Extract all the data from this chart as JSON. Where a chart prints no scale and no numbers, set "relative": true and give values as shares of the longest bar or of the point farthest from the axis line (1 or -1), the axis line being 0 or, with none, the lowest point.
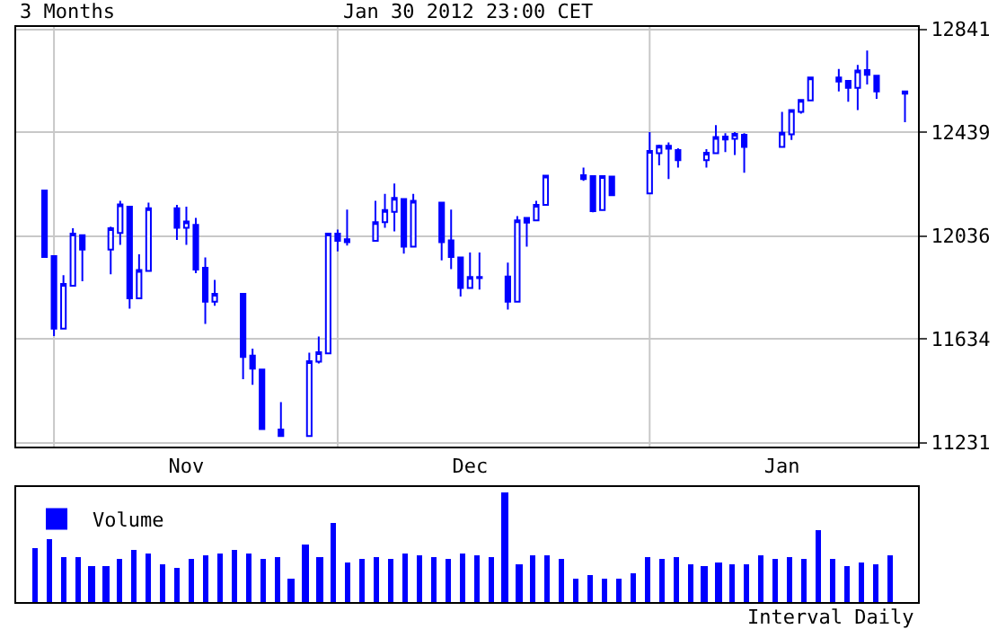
{
  "chart_data": [
    {
      "type": "candlestick",
      "title": "3 Months",
      "subtitle": "Jan 30 2012 23:00 CET",
      "color": "#0000ff",
      "grid": true,
      "x": [
        "2011-10-31",
        "2011-11-01",
        "2011-11-02",
        "2011-11-03",
        "2011-11-04",
        "2011-11-07",
        "2011-11-08",
        "2011-11-09",
        "2011-11-10",
        "2011-11-11",
        "2011-11-14",
        "2011-11-15",
        "2011-11-16",
        "2011-11-17",
        "2011-11-18",
        "2011-11-21",
        "2011-11-22",
        "2011-11-23",
        "2011-11-25",
        "2011-11-28",
        "2011-11-29",
        "2011-11-30",
        "2011-12-01",
        "2011-12-02",
        "2011-12-05",
        "2011-12-06",
        "2011-12-07",
        "2011-12-08",
        "2011-12-09",
        "2011-12-12",
        "2011-12-13",
        "2011-12-14",
        "2011-12-15",
        "2011-12-16",
        "2011-12-19",
        "2011-12-20",
        "2011-12-21",
        "2011-12-22",
        "2011-12-23",
        "2011-12-27",
        "2011-12-28",
        "2011-12-29",
        "2011-12-30",
        "2012-01-03",
        "2012-01-04",
        "2012-01-05",
        "2012-01-06",
        "2012-01-09",
        "2012-01-10",
        "2012-01-11",
        "2012-01-12",
        "2012-01-13",
        "2012-01-17",
        "2012-01-18",
        "2012-01-19",
        "2012-01-20",
        "2012-01-23",
        "2012-01-24",
        "2012-01-25",
        "2012-01-26",
        "2012-01-27",
        "2012-01-30"
      ],
      "ohlc": [
        [
          12213,
          12213,
          11954,
          11954
        ],
        [
          11958,
          11958,
          11646,
          11675
        ],
        [
          11675,
          11883,
          11675,
          11849
        ],
        [
          11842,
          12066,
          11842,
          12045
        ],
        [
          12039,
          12039,
          11860,
          11983
        ],
        [
          11983,
          12072,
          11887,
          12066
        ],
        [
          12048,
          12173,
          12001,
          12159
        ],
        [
          12150,
          12150,
          11753,
          11793
        ],
        [
          11793,
          11965,
          11793,
          11903
        ],
        [
          11900,
          12166,
          11900,
          12144
        ],
        [
          12144,
          12157,
          12021,
          12068
        ],
        [
          12068,
          12150,
          12001,
          12092
        ],
        [
          12079,
          12106,
          11891,
          11905
        ],
        [
          11912,
          11952,
          11693,
          11780
        ],
        [
          11780,
          11865,
          11764,
          11811
        ],
        [
          11811,
          11811,
          11478,
          11565
        ],
        [
          11570,
          11597,
          11456,
          11519
        ],
        [
          11516,
          11516,
          11284,
          11284
        ],
        [
          11282,
          11389,
          11257,
          11257
        ],
        [
          11257,
          11581,
          11257,
          11548
        ],
        [
          11546,
          11644,
          11539,
          11583
        ],
        [
          11579,
          12045,
          11579,
          12045
        ],
        [
          12045,
          12061,
          11976,
          12017
        ],
        [
          12023,
          12139,
          11999,
          12012
        ],
        [
          12017,
          12173,
          12017,
          12090
        ],
        [
          12090,
          12200,
          12068,
          12137
        ],
        [
          12130,
          12240,
          12054,
          12184
        ],
        [
          12180,
          12180,
          11967,
          11994
        ],
        [
          11994,
          12200,
          11994,
          12173
        ],
        [
          12166,
          12166,
          11941,
          12012
        ],
        [
          12019,
          12139,
          11907,
          11954
        ],
        [
          11952,
          11952,
          11800,
          11833
        ],
        [
          11833,
          11972,
          11833,
          11876
        ],
        [
          11876,
          11972,
          11827,
          11872
        ],
        [
          11878,
          11932,
          11749,
          11780
        ],
        [
          11780,
          12113,
          11780,
          12097
        ],
        [
          12106,
          12106,
          11994,
          12088
        ],
        [
          12097,
          12173,
          12097,
          12157
        ],
        [
          12157,
          12271,
          12157,
          12271
        ],
        [
          12273,
          12302,
          12251,
          12258
        ],
        [
          12269,
          12271,
          12128,
          12133
        ],
        [
          12137,
          12271,
          12137,
          12269
        ],
        [
          12267,
          12267,
          12195,
          12195
        ],
        [
          12202,
          12441,
          12202,
          12367
        ],
        [
          12358,
          12392,
          12311,
          12387
        ],
        [
          12387,
          12400,
          12258,
          12376
        ],
        [
          12371,
          12378,
          12302,
          12331
        ],
        [
          12331,
          12374,
          12302,
          12360
        ],
        [
          12358,
          12468,
          12358,
          12421
        ],
        [
          12423,
          12436,
          12363,
          12412
        ],
        [
          12414,
          12441,
          12351,
          12434
        ],
        [
          12430,
          12436,
          12282,
          12383
        ],
        [
          12383,
          12519,
          12383,
          12438
        ],
        [
          12432,
          12526,
          12410,
          12526
        ],
        [
          12519,
          12566,
          12512,
          12566
        ],
        [
          12564,
          12653,
          12564,
          12653
        ],
        [
          12653,
          12686,
          12599,
          12637
        ],
        [
          12640,
          12640,
          12559,
          12613
        ],
        [
          12613,
          12702,
          12526,
          12680
        ],
        [
          12682,
          12758,
          12626,
          12664
        ],
        [
          12660,
          12660,
          12570,
          12599
        ],
        [
          12599,
          12599,
          12479,
          12590
        ]
      ],
      "xlim": [
        "2011-10-28",
        "2012-01-31T09:00"
      ],
      "xticks": [
        {
          "value": "2011-11-01",
          "label": null
        },
        {
          "value": "2011-12-01",
          "label": null
        },
        {
          "value": "2012-01-03",
          "label": null
        },
        {
          "value": "2011-11-15",
          "label": "Nov"
        },
        {
          "value": "2011-12-15",
          "label": "Dec"
        },
        {
          "value": "2012-01-17",
          "label": "Jan"
        }
      ],
      "ylim": [
        11215,
        12850
      ],
      "yticks": [
        11231,
        11634,
        12036,
        12439,
        12841
      ]
    },
    {
      "type": "bar",
      "relative": true,
      "legend": "top left",
      "annotations": [
        "Interval Daily"
      ],
      "categories": [
        null,
        null,
        null,
        null,
        null,
        null,
        null,
        null,
        null,
        null,
        null,
        null,
        null,
        null,
        null,
        null,
        null,
        null,
        null,
        null,
        null,
        null,
        null,
        null,
        null,
        null,
        null,
        null,
        null,
        null,
        null,
        null,
        null,
        null,
        null,
        null,
        null,
        null,
        null,
        null,
        null,
        null,
        null,
        null,
        null,
        null,
        null,
        null,
        null,
        null,
        null,
        null,
        null,
        null,
        null,
        null,
        null,
        null,
        null,
        null,
        null
      ],
      "series": [
        {
          "name": "Volume",
          "color": "#0000ff",
          "values": [
            0.49,
            0.57,
            0.41,
            0.41,
            0.33,
            0.33,
            0.39,
            0.47,
            0.45,
            0.35,
            0.31,
            0.39,
            0.43,
            0.45,
            0.47,
            0.45,
            0.39,
            0.41,
            0.22,
            0.53,
            0.41,
            0.73,
            0.37,
            0.39,
            0.41,
            0.39,
            0.45,
            0.43,
            0.41,
            0.39,
            0.45,
            0.43,
            0.41,
            1,
            0.35,
            0.43,
            0.43,
            0.39,
            0.22,
            0.24,
            0.22,
            0.22,
            0.27,
            0.41,
            0.39,
            0.41,
            0.35,
            0.33,
            0.37,
            0.35,
            0.35,
            0.43,
            0.39,
            0.41,
            0.39,
            0.65,
            0.39,
            0.33,
            0.37,
            0.35,
            0.43
          ]
        }
      ]
    }
  ]
}
